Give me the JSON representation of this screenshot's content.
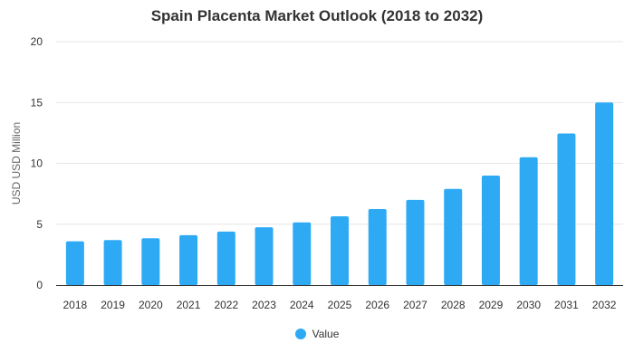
{
  "chart_data": {
    "type": "bar",
    "title": "Spain Placenta Market Outlook (2018 to 2032)",
    "xlabel": "",
    "ylabel": "USD USD Million",
    "ylim": [
      0,
      20
    ],
    "yticks": [
      0,
      5,
      10,
      15,
      20
    ],
    "grid": true,
    "legend_position": "bottom",
    "categories": [
      "2018",
      "2019",
      "2020",
      "2021",
      "2022",
      "2023",
      "2024",
      "2025",
      "2026",
      "2027",
      "2028",
      "2029",
      "2030",
      "2031",
      "2032"
    ],
    "series": [
      {
        "name": "Value",
        "color": "#2eaaf5",
        "values": [
          3.6,
          3.7,
          3.85,
          4.1,
          4.4,
          4.75,
          5.15,
          5.65,
          6.25,
          7.0,
          7.9,
          9.0,
          10.5,
          12.45,
          15.0
        ]
      }
    ]
  }
}
